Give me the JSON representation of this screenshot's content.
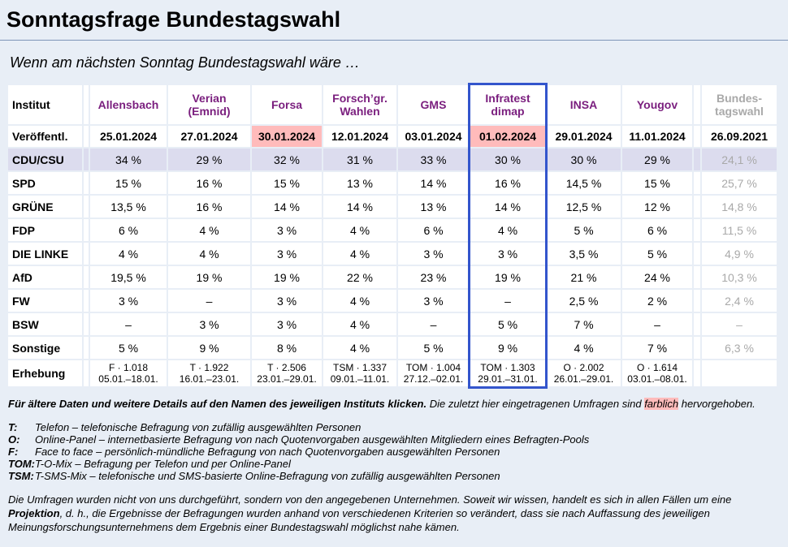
{
  "page": {
    "title": "Sonntagsfrage Bundestagswahl",
    "subtitle": "Wenn am nächsten Sonntag Bundestagswahl wäre …"
  },
  "table": {
    "corner": "Institut",
    "row_labels": {
      "published": "Veröffentl.",
      "survey": "Erhebung"
    },
    "institutes": [
      {
        "name": "Allensbach",
        "published": "25.01.2024",
        "published_highlight": false,
        "is_link": true,
        "muted": false,
        "boxed": false,
        "spacer_before": false,
        "survey_sample": "F · 1.018",
        "survey_period": "05.01.–18.01."
      },
      {
        "name": "Verian (Emnid)",
        "published": "27.01.2024",
        "published_highlight": false,
        "is_link": true,
        "muted": false,
        "boxed": false,
        "spacer_before": false,
        "survey_sample": "T · 1.922",
        "survey_period": "16.01.–23.01."
      },
      {
        "name": "Forsa",
        "published": "30.01.2024",
        "published_highlight": true,
        "is_link": true,
        "muted": false,
        "boxed": false,
        "spacer_before": false,
        "survey_sample": "T · 2.506",
        "survey_period": "23.01.–29.01."
      },
      {
        "name": "Forsch’gr. Wahlen",
        "published": "12.01.2024",
        "published_highlight": false,
        "is_link": true,
        "muted": false,
        "boxed": false,
        "spacer_before": false,
        "survey_sample": "TSM · 1.337",
        "survey_period": "09.01.–11.01."
      },
      {
        "name": "GMS",
        "published": "03.01.2024",
        "published_highlight": false,
        "is_link": true,
        "muted": false,
        "boxed": false,
        "spacer_before": false,
        "survey_sample": "TOM · 1.004",
        "survey_period": "27.12.–02.01."
      },
      {
        "name": "Infratest dimap",
        "published": "01.02.2024",
        "published_highlight": true,
        "is_link": true,
        "muted": false,
        "boxed": true,
        "spacer_before": false,
        "survey_sample": "TOM · 1.303",
        "survey_period": "29.01.–31.01."
      },
      {
        "name": "INSA",
        "published": "29.01.2024",
        "published_highlight": false,
        "is_link": true,
        "muted": false,
        "boxed": false,
        "spacer_before": false,
        "survey_sample": "O · 2.002",
        "survey_period": "26.01.–29.01."
      },
      {
        "name": "Yougov",
        "published": "11.01.2024",
        "published_highlight": false,
        "is_link": true,
        "muted": false,
        "boxed": false,
        "spacer_before": false,
        "survey_sample": "O · 1.614",
        "survey_period": "03.01.–08.01."
      },
      {
        "name": "Bundes-tagswahl",
        "published": "26.09.2021",
        "published_highlight": false,
        "is_link": false,
        "muted": true,
        "boxed": false,
        "spacer_before": true,
        "survey_sample": "",
        "survey_period": ""
      }
    ],
    "parties": [
      {
        "name": "CDU/CSU",
        "highlight": true,
        "values": [
          "34 %",
          "29 %",
          "32 %",
          "31 %",
          "33 %",
          "30 %",
          "30 %",
          "29 %",
          "24,1 %"
        ]
      },
      {
        "name": "SPD",
        "highlight": false,
        "values": [
          "15 %",
          "16 %",
          "15 %",
          "13 %",
          "14 %",
          "16 %",
          "14,5 %",
          "15 %",
          "25,7 %"
        ]
      },
      {
        "name": "GRÜNE",
        "highlight": false,
        "values": [
          "13,5 %",
          "16 %",
          "14 %",
          "14 %",
          "13 %",
          "14 %",
          "12,5 %",
          "12 %",
          "14,8 %"
        ]
      },
      {
        "name": "FDP",
        "highlight": false,
        "values": [
          "6 %",
          "4 %",
          "3 %",
          "4 %",
          "6 %",
          "4 %",
          "5 %",
          "6 %",
          "11,5 %"
        ]
      },
      {
        "name": "DIE LINKE",
        "highlight": false,
        "values": [
          "4 %",
          "4 %",
          "3 %",
          "4 %",
          "3 %",
          "3 %",
          "3,5 %",
          "5 %",
          "4,9 %"
        ]
      },
      {
        "name": "AfD",
        "highlight": false,
        "values": [
          "19,5 %",
          "19 %",
          "19 %",
          "22 %",
          "23 %",
          "19 %",
          "21 %",
          "24 %",
          "10,3 %"
        ]
      },
      {
        "name": "FW",
        "highlight": false,
        "values": [
          "3 %",
          "–",
          "3 %",
          "4 %",
          "3 %",
          "–",
          "2,5 %",
          "2 %",
          "2,4 %"
        ]
      },
      {
        "name": "BSW",
        "highlight": false,
        "values": [
          "–",
          "3 %",
          "3 %",
          "4 %",
          "–",
          "5 %",
          "7 %",
          "–",
          "–"
        ]
      },
      {
        "name": "Sonstige",
        "highlight": false,
        "values": [
          "5 %",
          "9 %",
          "8 %",
          "4 %",
          "5 %",
          "9 %",
          "4 %",
          "7 %",
          "6,3 %"
        ]
      }
    ]
  },
  "notes": {
    "click_note": "Für ältere Daten und weitere Details auf den Namen des jeweiligen Instituts klicken.",
    "recent_pre": " Die zuletzt hier eingetragenen Umfragen sind ",
    "recent_highlight": "farblich",
    "recent_post": " hervorgehoben."
  },
  "legend": [
    {
      "term": "T:",
      "desc": "Telefon – telefonische Befragung von zufällig ausgewählten Personen"
    },
    {
      "term": "O:",
      "desc": "Online-Panel – internetbasierte Befragung von nach Quotenvorgaben ausgewählten Mitgliedern eines Befragten-Pools"
    },
    {
      "term": "F:",
      "desc": "Face to face – persönlich-mündliche Befragung von nach Quotenvorgaben ausgewählten Personen"
    },
    {
      "term": "TOM:",
      "desc": "T-O-Mix – Befragung per Telefon und per Online-Panel"
    },
    {
      "term": "TSM:",
      "desc": "T-SMS-Mix – telefonische und SMS-basierte Online-Befragung von zufällig ausgewählten Personen"
    }
  ],
  "disclaimer": {
    "pre": "Die Umfragen wurden nicht von uns durchgeführt, sondern von den angegebenen Unternehmen. Soweit wir wissen, handelt es sich in allen Fällen um eine ",
    "bold": "Projektion",
    "post": ", d. h., die Ergebnisse der Befragungen wurden anhand von verschiedenen Kriterien so verändert, dass sie nach Auffassung des jeweiligen Meinungsforschungsunternehmens dem Ergebnis einer Bundestagswahl möglichst nahe kämen."
  },
  "colors": {
    "page_background": "#E8EEF6",
    "link_purple": "#7A1E7E",
    "highlight_pink": "#FFBBBB",
    "highlight_row_lavender": "#DCDCEE",
    "column_box_blue": "#3355CC",
    "muted_gray": "#A9A9A9"
  }
}
